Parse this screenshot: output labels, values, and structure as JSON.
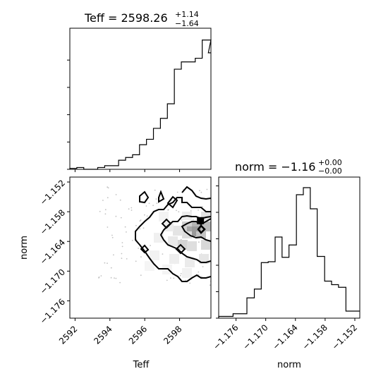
{
  "chart_data": [
    {
      "type": "histogram",
      "panel": "Teff marginal",
      "title": {
        "param": "Teff",
        "value": "2598.26",
        "upper": "+1.14",
        "lower": "−1.64"
      },
      "xlim": [
        2591.7,
        2599.8
      ],
      "bins": [
        2591.7,
        2592.1,
        2592.5,
        2592.9,
        2593.3,
        2593.7,
        2594.1,
        2594.5,
        2594.9,
        2595.3,
        2595.7,
        2596.1,
        2596.5,
        2596.9,
        2597.3,
        2597.7,
        2598.1,
        2598.5,
        2598.9,
        2599.3,
        2599.8
      ],
      "counts": [
        1,
        2,
        0,
        0,
        2,
        4,
        4,
        10,
        13,
        16,
        27,
        33,
        45,
        56,
        72,
        110,
        118,
        118,
        122,
        142
      ],
      "extra_tail_count": 128,
      "ylim": [
        0,
        155
      ]
    },
    {
      "type": "histogram",
      "panel": "norm marginal",
      "title": {
        "param": "norm",
        "value": "−1.16",
        "upper": "+0.00",
        "lower": "−0.00"
      },
      "xlim": [
        -1.1795,
        -1.151
      ],
      "bins": [
        -1.1795,
        -1.1778,
        -1.1766,
        -1.1752,
        -1.1738,
        -1.1723,
        -1.1709,
        -1.1695,
        -1.1681,
        -1.1667,
        -1.1653,
        -1.1638,
        -1.1624,
        -1.161,
        -1.1596,
        -1.1581,
        -1.1567,
        -1.1553,
        -1.1538,
        -1.1524,
        -1.151
      ],
      "counts": [
        2,
        2,
        5,
        5,
        23,
        33,
        63,
        64,
        92,
        69,
        83,
        140,
        148,
        124,
        70,
        42,
        38,
        35,
        8,
        8
      ],
      "ylim": [
        0,
        160
      ],
      "xticks": [
        "−1.176",
        "−1.170",
        "−1.164",
        "−1.158",
        "−1.152"
      ],
      "xticks_values": [
        -1.176,
        -1.17,
        -1.164,
        -1.158,
        -1.152
      ],
      "xlabel": "norm"
    },
    {
      "type": "contour",
      "panel": "joint Teff vs norm",
      "xlim": [
        2591.7,
        2599.8
      ],
      "ylim": [
        -1.1795,
        -1.151
      ],
      "xticks": [
        "2592",
        "2594",
        "2596",
        "2598"
      ],
      "xticks_values": [
        2592,
        2594,
        2596,
        2598
      ],
      "yticks": [
        "−1.152",
        "−1.158",
        "−1.164",
        "−1.170",
        "−1.176"
      ],
      "yticks_values": [
        -1.152,
        -1.158,
        -1.164,
        -1.17,
        -1.176
      ],
      "xlabel": "Teff",
      "ylabel": "norm",
      "density_peak": {
        "x": 2599.2,
        "y": -1.1598
      }
    }
  ]
}
